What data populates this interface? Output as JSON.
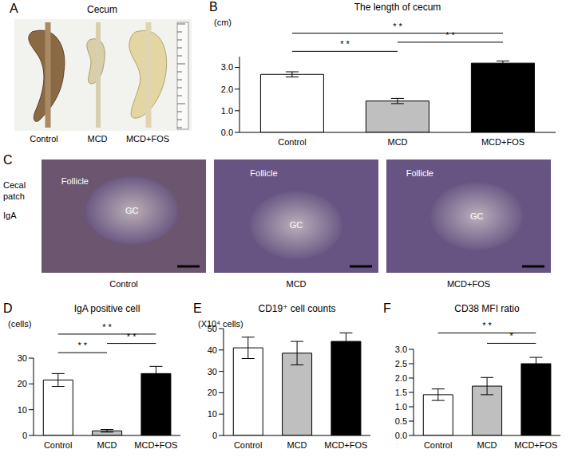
{
  "image_panels": [
    {
      "panel": "A",
      "title": "Cecum",
      "labels": [
        "Control",
        "MCD",
        "MCD+FOS"
      ]
    },
    {
      "panel": "C",
      "side_label": [
        "Cecal",
        "patch",
        "IgA"
      ],
      "images": [
        {
          "caption": "Control",
          "regions": [
            "Follicle",
            "GC"
          ]
        },
        {
          "caption": "MCD",
          "regions": [
            "Follicle",
            "GC"
          ]
        },
        {
          "caption": "MCD+FOS",
          "regions": [
            "Follicle",
            "GC"
          ]
        }
      ]
    }
  ],
  "chart_data": [
    {
      "type": "bar",
      "panel": "B",
      "title": "The length of cecum",
      "y_label": "(cm)",
      "categories": [
        "Control",
        "MCD",
        "MCD+FOS"
      ],
      "values": [
        2.68,
        1.45,
        3.2
      ],
      "errors": [
        0.12,
        0.12,
        0.1
      ],
      "colors": [
        "#ffffff",
        "#bfbfbf",
        "#000000"
      ],
      "ylim": [
        0,
        3.5
      ],
      "yticks": [
        {
          "value": 0,
          "label": "0.0"
        },
        {
          "value": 0.5,
          "label": "0.5"
        },
        {
          "value": 1,
          "label": "1.0"
        },
        {
          "value": 1.5,
          "label": "1.5"
        },
        {
          "value": 2,
          "label": "2.0"
        },
        {
          "value": 2.5,
          "label": "2.5"
        },
        {
          "value": 3,
          "label": "3.0"
        }
      ],
      "grid": false,
      "significance": [
        {
          "from": "Control",
          "to": "MCD",
          "label": "* *"
        },
        {
          "from": "MCD",
          "to": "MCD+FOS",
          "label": "* *"
        },
        {
          "from": "Control",
          "to": "MCD+FOS",
          "label": "* *"
        }
      ]
    },
    {
      "type": "bar",
      "panel": "D",
      "title": "IgA positive cell",
      "y_label": "(cells)",
      "categories": [
        "Control",
        "MCD",
        "MCD+FOS"
      ],
      "values": [
        21.5,
        1.8,
        24
      ],
      "errors": [
        2.5,
        0.5,
        2.8
      ],
      "colors": [
        "#ffffff",
        "#bfbfbf",
        "#000000"
      ],
      "ylim": [
        0,
        30
      ],
      "yticks": [
        0,
        10,
        20,
        30
      ],
      "grid": false,
      "significance": [
        {
          "from": "Control",
          "to": "MCD",
          "label": "* *"
        },
        {
          "from": "MCD",
          "to": "MCD+FOS",
          "label": "* *"
        },
        {
          "from": "Control",
          "to": "MCD+FOS",
          "label": "* *"
        }
      ]
    },
    {
      "type": "bar",
      "panel": "E",
      "title": "CD19⁺ cell counts",
      "y_label": "(X10⁴ cells)",
      "categories": [
        "Control",
        "MCD",
        "MCD+FOS"
      ],
      "values": [
        41,
        38.5,
        44
      ],
      "errors": [
        5,
        5.5,
        4
      ],
      "colors": [
        "#ffffff",
        "#bfbfbf",
        "#000000"
      ],
      "ylim": [
        0,
        50
      ],
      "yticks": [
        0,
        10,
        20,
        30,
        40,
        50
      ],
      "grid": false,
      "significance": []
    },
    {
      "type": "bar",
      "panel": "F",
      "title": "CD38 MFI ratio",
      "categories": [
        "Control",
        "MCD",
        "MCD+FOS"
      ],
      "values": [
        1.42,
        1.72,
        2.5
      ],
      "errors": [
        0.2,
        0.3,
        0.22
      ],
      "colors": [
        "#ffffff",
        "#bfbfbf",
        "#000000"
      ],
      "ylim": [
        0,
        3
      ],
      "yticks": [
        {
          "value": 0,
          "label": "0.0"
        },
        {
          "value": 0.5,
          "label": "0.5"
        },
        {
          "value": 1,
          "label": "1.0"
        },
        {
          "value": 1.5,
          "label": "1.5"
        },
        {
          "value": 2,
          "label": "2.0"
        },
        {
          "value": 2.5,
          "label": "2.5"
        },
        {
          "value": 3,
          "label": "3.0"
        }
      ],
      "grid": false,
      "significance": [
        {
          "from": "MCD",
          "to": "MCD+FOS",
          "label": "*"
        },
        {
          "from": "Control",
          "to": "MCD+FOS",
          "label": "* *"
        }
      ]
    }
  ]
}
